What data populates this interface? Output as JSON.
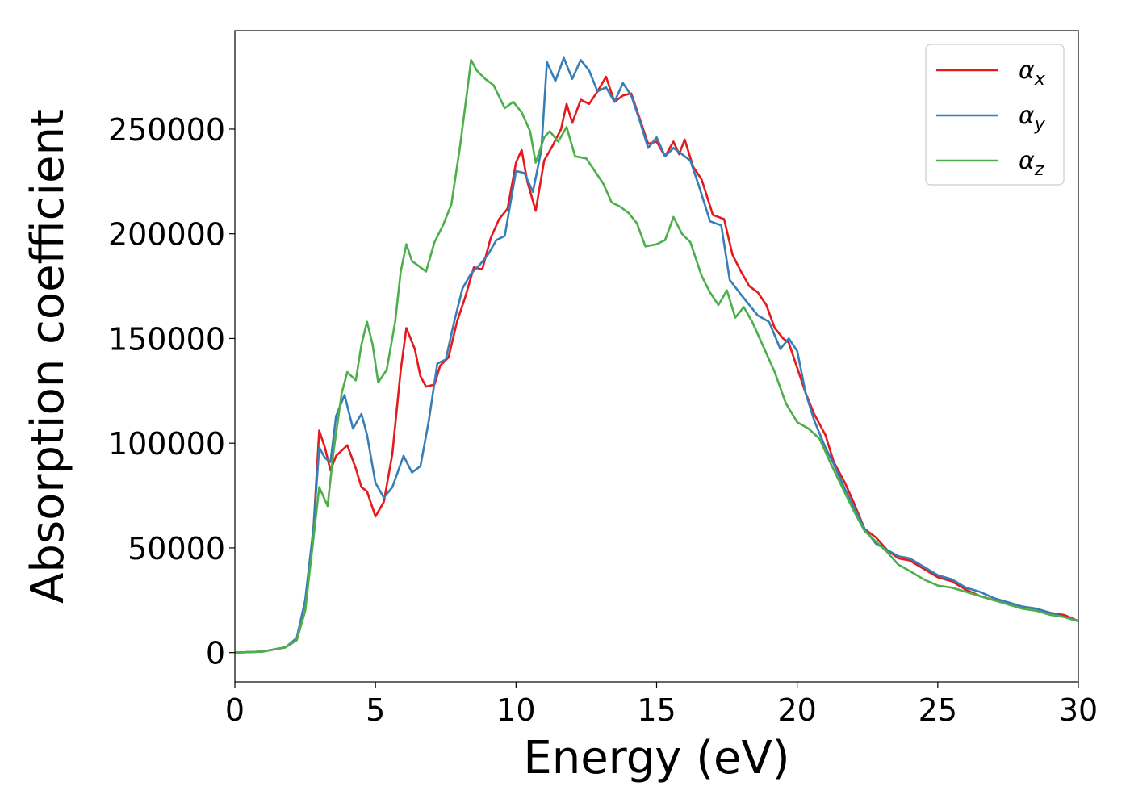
{
  "chart_data": {
    "type": "line",
    "title": "",
    "xlabel": "Energy (eV)",
    "ylabel": "Absorption coefficient",
    "xlim": [
      0,
      30
    ],
    "ylim": [
      -14000,
      297000
    ],
    "x_ticks": [
      0,
      5,
      10,
      15,
      20,
      25,
      30
    ],
    "x_tick_labels": [
      "0",
      "5",
      "10",
      "15",
      "20",
      "25",
      "30"
    ],
    "y_ticks": [
      0,
      50000,
      100000,
      150000,
      200000,
      250000
    ],
    "y_tick_labels": [
      "0",
      "50000",
      "100000",
      "150000",
      "200000",
      "250000"
    ],
    "grid": false,
    "legend_position": "top-right",
    "series": [
      {
        "name": "αx",
        "legend_base": "α",
        "legend_sub": "x",
        "color": "#e41a1c",
        "points": [
          [
            0,
            0
          ],
          [
            1,
            500
          ],
          [
            1.8,
            2500
          ],
          [
            2.2,
            6000
          ],
          [
            2.5,
            20000
          ],
          [
            2.8,
            60000
          ],
          [
            3.0,
            106000
          ],
          [
            3.2,
            98000
          ],
          [
            3.4,
            87000
          ],
          [
            3.6,
            94000
          ],
          [
            4.0,
            99000
          ],
          [
            4.3,
            88000
          ],
          [
            4.5,
            79000
          ],
          [
            4.7,
            77000
          ],
          [
            5.0,
            65000
          ],
          [
            5.3,
            72000
          ],
          [
            5.6,
            95000
          ],
          [
            5.9,
            135000
          ],
          [
            6.1,
            155000
          ],
          [
            6.4,
            145000
          ],
          [
            6.6,
            132000
          ],
          [
            6.8,
            127000
          ],
          [
            7.1,
            128000
          ],
          [
            7.3,
            137000
          ],
          [
            7.6,
            141000
          ],
          [
            7.9,
            158000
          ],
          [
            8.2,
            170000
          ],
          [
            8.5,
            184000
          ],
          [
            8.8,
            183000
          ],
          [
            9.1,
            198000
          ],
          [
            9.4,
            207000
          ],
          [
            9.7,
            212000
          ],
          [
            10.0,
            234000
          ],
          [
            10.2,
            240000
          ],
          [
            10.4,
            225000
          ],
          [
            10.7,
            211000
          ],
          [
            11.0,
            235000
          ],
          [
            11.3,
            242000
          ],
          [
            11.6,
            250000
          ],
          [
            11.8,
            262000
          ],
          [
            12.0,
            253000
          ],
          [
            12.3,
            264000
          ],
          [
            12.6,
            262000
          ],
          [
            12.9,
            268000
          ],
          [
            13.2,
            275000
          ],
          [
            13.5,
            263000
          ],
          [
            13.8,
            266000
          ],
          [
            14.1,
            267000
          ],
          [
            14.4,
            255000
          ],
          [
            14.7,
            243000
          ],
          [
            15.0,
            244000
          ],
          [
            15.3,
            237000
          ],
          [
            15.6,
            244000
          ],
          [
            15.8,
            238000
          ],
          [
            16.0,
            245000
          ],
          [
            16.3,
            232000
          ],
          [
            16.6,
            226000
          ],
          [
            17.0,
            209000
          ],
          [
            17.4,
            207000
          ],
          [
            17.7,
            190000
          ],
          [
            18.0,
            182000
          ],
          [
            18.3,
            175000
          ],
          [
            18.6,
            172000
          ],
          [
            18.9,
            166000
          ],
          [
            19.2,
            155000
          ],
          [
            19.5,
            150000
          ],
          [
            19.7,
            148000
          ],
          [
            20.0,
            136000
          ],
          [
            20.3,
            124000
          ],
          [
            20.6,
            114000
          ],
          [
            21.0,
            104000
          ],
          [
            21.3,
            91000
          ],
          [
            21.7,
            81000
          ],
          [
            22.0,
            72000
          ],
          [
            22.4,
            59000
          ],
          [
            22.8,
            55000
          ],
          [
            23.2,
            49000
          ],
          [
            23.6,
            45000
          ],
          [
            24.0,
            44000
          ],
          [
            24.5,
            40000
          ],
          [
            25.0,
            36000
          ],
          [
            25.5,
            34000
          ],
          [
            26.0,
            30000
          ],
          [
            26.5,
            27000
          ],
          [
            27.0,
            25000
          ],
          [
            27.5,
            24000
          ],
          [
            28.0,
            22000
          ],
          [
            28.5,
            21000
          ],
          [
            29.0,
            19000
          ],
          [
            29.5,
            18000
          ],
          [
            30.0,
            15000
          ]
        ]
      },
      {
        "name": "αy",
        "legend_base": "α",
        "legend_sub": "y",
        "color": "#377eb8",
        "points": [
          [
            0,
            0
          ],
          [
            1,
            500
          ],
          [
            1.8,
            2500
          ],
          [
            2.2,
            7000
          ],
          [
            2.5,
            25000
          ],
          [
            2.8,
            60000
          ],
          [
            3.0,
            98000
          ],
          [
            3.2,
            93000
          ],
          [
            3.4,
            91000
          ],
          [
            3.6,
            113000
          ],
          [
            3.9,
            123000
          ],
          [
            4.2,
            107000
          ],
          [
            4.5,
            114000
          ],
          [
            4.7,
            104000
          ],
          [
            5.0,
            81000
          ],
          [
            5.3,
            74000
          ],
          [
            5.6,
            79000
          ],
          [
            6.0,
            94000
          ],
          [
            6.3,
            86000
          ],
          [
            6.6,
            89000
          ],
          [
            6.9,
            111000
          ],
          [
            7.2,
            138000
          ],
          [
            7.5,
            140000
          ],
          [
            7.8,
            158000
          ],
          [
            8.1,
            174000
          ],
          [
            8.4,
            181000
          ],
          [
            8.7,
            185000
          ],
          [
            9.0,
            190000
          ],
          [
            9.3,
            197000
          ],
          [
            9.6,
            199000
          ],
          [
            10.0,
            230000
          ],
          [
            10.3,
            229000
          ],
          [
            10.6,
            220000
          ],
          [
            10.9,
            240000
          ],
          [
            11.1,
            282000
          ],
          [
            11.4,
            273000
          ],
          [
            11.7,
            284000
          ],
          [
            12.0,
            274000
          ],
          [
            12.3,
            283000
          ],
          [
            12.6,
            278000
          ],
          [
            12.9,
            268000
          ],
          [
            13.2,
            270000
          ],
          [
            13.5,
            263000
          ],
          [
            13.8,
            272000
          ],
          [
            14.1,
            266000
          ],
          [
            14.4,
            254000
          ],
          [
            14.7,
            241000
          ],
          [
            15.0,
            246000
          ],
          [
            15.3,
            237000
          ],
          [
            15.6,
            241000
          ],
          [
            15.9,
            238000
          ],
          [
            16.2,
            235000
          ],
          [
            16.5,
            223000
          ],
          [
            16.9,
            206000
          ],
          [
            17.3,
            204000
          ],
          [
            17.6,
            178000
          ],
          [
            18.0,
            171000
          ],
          [
            18.3,
            166000
          ],
          [
            18.6,
            161000
          ],
          [
            19.0,
            158000
          ],
          [
            19.4,
            145000
          ],
          [
            19.7,
            150000
          ],
          [
            20.0,
            144000
          ],
          [
            20.3,
            124000
          ],
          [
            20.6,
            111000
          ],
          [
            21.0,
            98000
          ],
          [
            21.3,
            90000
          ],
          [
            21.7,
            78000
          ],
          [
            22.0,
            70000
          ],
          [
            22.4,
            59000
          ],
          [
            22.8,
            52000
          ],
          [
            23.2,
            49000
          ],
          [
            23.6,
            46000
          ],
          [
            24.0,
            45000
          ],
          [
            24.5,
            41000
          ],
          [
            25.0,
            37000
          ],
          [
            25.5,
            35000
          ],
          [
            26.0,
            31000
          ],
          [
            26.5,
            29000
          ],
          [
            27.0,
            26000
          ],
          [
            27.5,
            24000
          ],
          [
            28.0,
            22000
          ],
          [
            28.5,
            21000
          ],
          [
            29.0,
            19000
          ],
          [
            29.5,
            17000
          ],
          [
            30.0,
            15000
          ]
        ]
      },
      {
        "name": "αz",
        "legend_base": "α",
        "legend_sub": "z",
        "color": "#4daf4a",
        "points": [
          [
            0,
            0
          ],
          [
            1,
            500
          ],
          [
            1.8,
            2500
          ],
          [
            2.2,
            6000
          ],
          [
            2.5,
            20000
          ],
          [
            2.8,
            55000
          ],
          [
            3.0,
            79000
          ],
          [
            3.3,
            70000
          ],
          [
            3.5,
            95000
          ],
          [
            3.8,
            124000
          ],
          [
            4.0,
            134000
          ],
          [
            4.3,
            130000
          ],
          [
            4.5,
            147000
          ],
          [
            4.7,
            158000
          ],
          [
            4.9,
            147000
          ],
          [
            5.1,
            129000
          ],
          [
            5.4,
            135000
          ],
          [
            5.7,
            158000
          ],
          [
            5.9,
            182000
          ],
          [
            6.1,
            195000
          ],
          [
            6.3,
            187000
          ],
          [
            6.6,
            184000
          ],
          [
            6.8,
            182000
          ],
          [
            7.1,
            196000
          ],
          [
            7.4,
            204000
          ],
          [
            7.7,
            214000
          ],
          [
            8.0,
            241000
          ],
          [
            8.3,
            272000
          ],
          [
            8.4,
            283000
          ],
          [
            8.6,
            278000
          ],
          [
            8.9,
            274000
          ],
          [
            9.2,
            271000
          ],
          [
            9.6,
            260000
          ],
          [
            9.9,
            263000
          ],
          [
            10.2,
            258000
          ],
          [
            10.5,
            249000
          ],
          [
            10.7,
            234000
          ],
          [
            11.0,
            246000
          ],
          [
            11.2,
            249000
          ],
          [
            11.5,
            244000
          ],
          [
            11.8,
            251000
          ],
          [
            12.1,
            237000
          ],
          [
            12.5,
            236000
          ],
          [
            12.8,
            230000
          ],
          [
            13.1,
            224000
          ],
          [
            13.4,
            215000
          ],
          [
            13.7,
            213000
          ],
          [
            14.0,
            210000
          ],
          [
            14.3,
            205000
          ],
          [
            14.6,
            194000
          ],
          [
            15.0,
            195000
          ],
          [
            15.3,
            197000
          ],
          [
            15.6,
            208000
          ],
          [
            15.9,
            200000
          ],
          [
            16.2,
            196000
          ],
          [
            16.6,
            180000
          ],
          [
            16.9,
            172000
          ],
          [
            17.2,
            166000
          ],
          [
            17.5,
            173000
          ],
          [
            17.8,
            160000
          ],
          [
            18.1,
            165000
          ],
          [
            18.4,
            158000
          ],
          [
            18.8,
            146000
          ],
          [
            19.2,
            134000
          ],
          [
            19.6,
            119000
          ],
          [
            20.0,
            110000
          ],
          [
            20.4,
            107000
          ],
          [
            20.8,
            102000
          ],
          [
            21.2,
            90000
          ],
          [
            21.6,
            79000
          ],
          [
            22.0,
            68000
          ],
          [
            22.4,
            58000
          ],
          [
            22.8,
            53000
          ],
          [
            23.2,
            48000
          ],
          [
            23.6,
            42000
          ],
          [
            24.0,
            39000
          ],
          [
            24.5,
            35000
          ],
          [
            25.0,
            32000
          ],
          [
            25.5,
            31000
          ],
          [
            26.0,
            29000
          ],
          [
            26.5,
            27000
          ],
          [
            27.0,
            25000
          ],
          [
            27.5,
            23000
          ],
          [
            28.0,
            21000
          ],
          [
            28.5,
            20000
          ],
          [
            29.0,
            18000
          ],
          [
            29.5,
            17000
          ],
          [
            30.0,
            15000
          ]
        ]
      }
    ]
  }
}
